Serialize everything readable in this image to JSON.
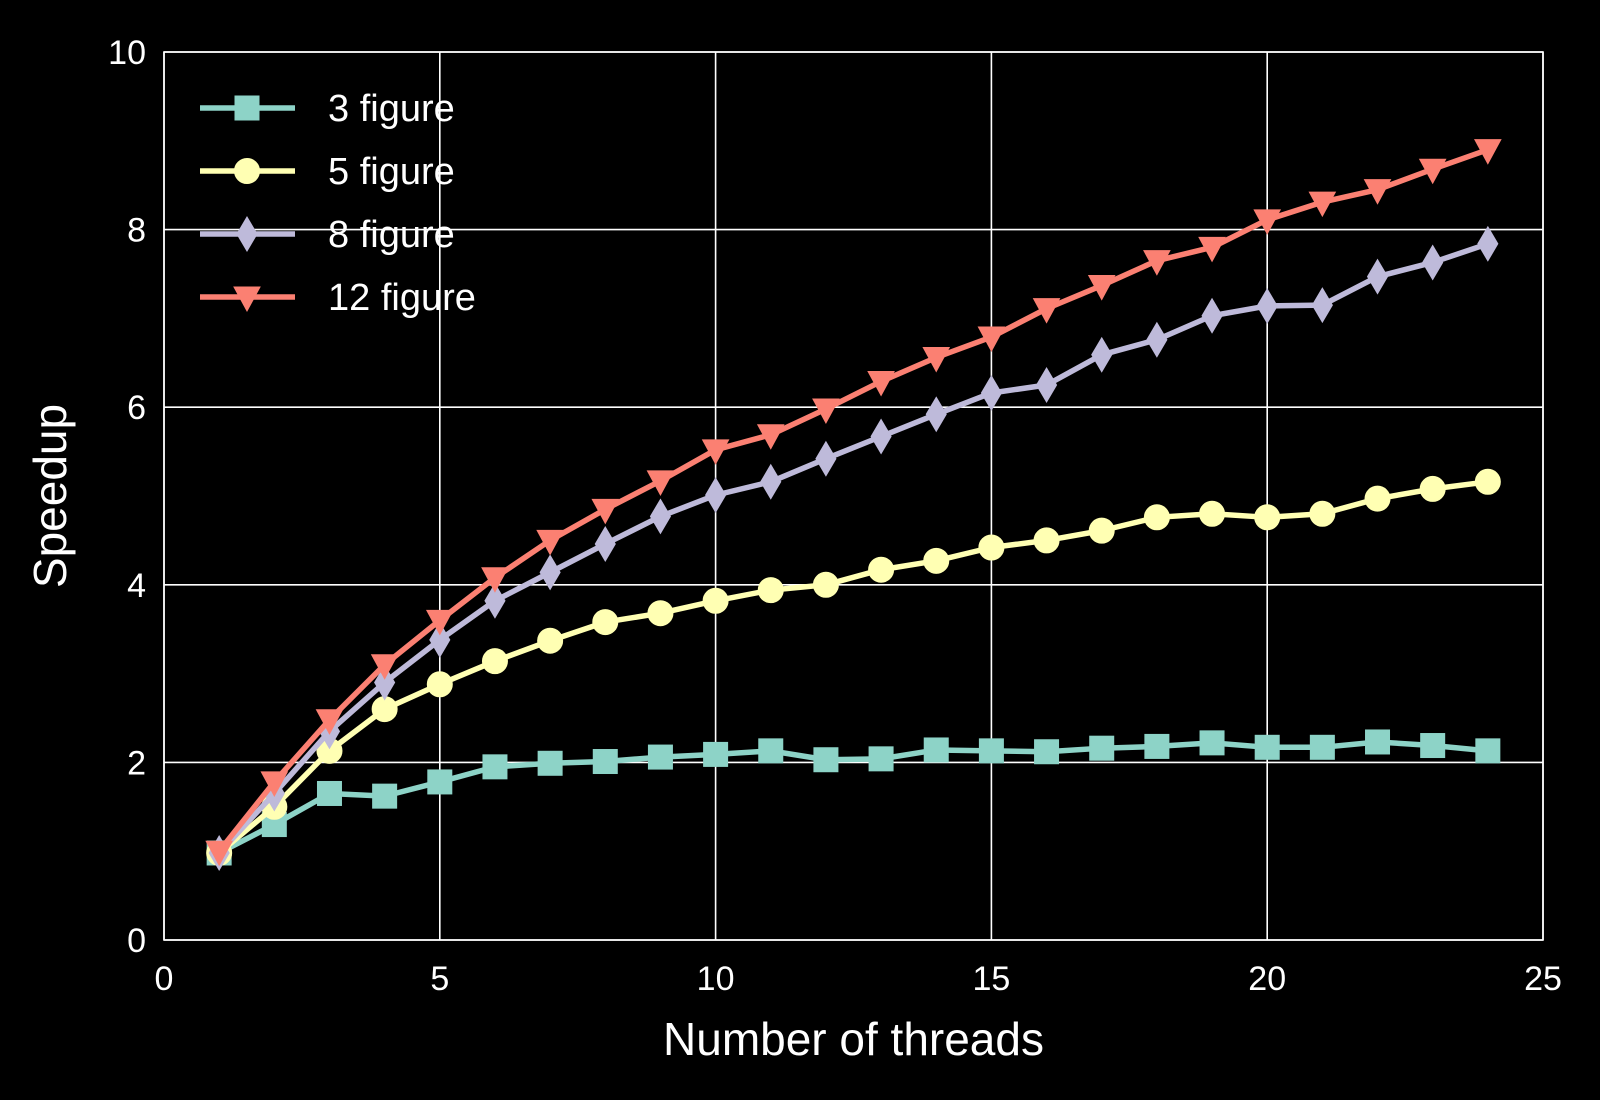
{
  "chart_data": {
    "type": "line",
    "title": "",
    "xlabel": "Number of threads",
    "ylabel": "Speedup",
    "xlim": [
      0,
      25
    ],
    "ylim": [
      0,
      10
    ],
    "xticks": [
      0,
      5,
      10,
      15,
      20,
      25
    ],
    "yticks": [
      0,
      2,
      4,
      6,
      8,
      10
    ],
    "grid": true,
    "legend_position": "top-left",
    "background_color": "#000000",
    "x": [
      1,
      2,
      3,
      4,
      5,
      6,
      7,
      8,
      9,
      10,
      11,
      12,
      13,
      14,
      15,
      16,
      17,
      18,
      19,
      20,
      21,
      22,
      23,
      24
    ],
    "series": [
      {
        "name": "3 figure",
        "color": "#8dd3c7",
        "marker": "square",
        "values": [
          0.98,
          1.3,
          1.65,
          1.62,
          1.78,
          1.95,
          1.99,
          2.01,
          2.06,
          2.09,
          2.13,
          2.03,
          2.04,
          2.14,
          2.13,
          2.12,
          2.16,
          2.18,
          2.22,
          2.17,
          2.17,
          2.23,
          2.19,
          2.13
        ]
      },
      {
        "name": "5 figure",
        "color": "#ffffb3",
        "marker": "circle",
        "values": [
          0.98,
          1.5,
          2.13,
          2.6,
          2.88,
          3.14,
          3.37,
          3.58,
          3.68,
          3.82,
          3.94,
          4.0,
          4.17,
          4.27,
          4.42,
          4.5,
          4.61,
          4.76,
          4.8,
          4.76,
          4.8,
          4.97,
          5.08,
          5.16
        ]
      },
      {
        "name": "8 figure",
        "color": "#bebada",
        "marker": "thin_diamond",
        "values": [
          0.98,
          1.65,
          2.35,
          2.9,
          3.38,
          3.82,
          4.14,
          4.46,
          4.77,
          5.01,
          5.16,
          5.42,
          5.67,
          5.92,
          6.16,
          6.25,
          6.59,
          6.76,
          7.03,
          7.14,
          7.15,
          7.47,
          7.63,
          7.84
        ]
      },
      {
        "name": "12 figure",
        "color": "#fb8072",
        "marker": "triangle_down",
        "values": [
          1.0,
          1.78,
          2.48,
          3.1,
          3.6,
          4.08,
          4.5,
          4.85,
          5.17,
          5.52,
          5.69,
          5.98,
          6.29,
          6.56,
          6.79,
          7.11,
          7.37,
          7.65,
          7.8,
          8.11,
          8.31,
          8.45,
          8.68,
          8.9
        ]
      }
    ]
  }
}
